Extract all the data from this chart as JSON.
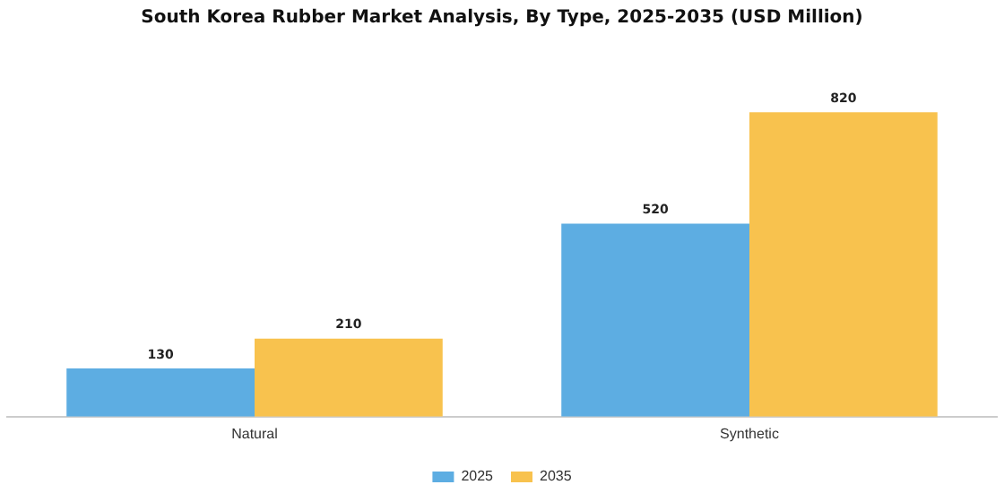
{
  "chart_data": {
    "type": "bar",
    "title": "South Korea Rubber Market Analysis, By Type, 2025-2035 (USD Million)",
    "categories": [
      "Natural",
      "Synthetic"
    ],
    "series": [
      {
        "name": "2025",
        "color": "#5dade2",
        "values": [
          130,
          520
        ]
      },
      {
        "name": "2035",
        "color": "#f8c24e",
        "values": [
          210,
          820
        ]
      }
    ],
    "data_labels": true,
    "legend": "bottom",
    "grid": false
  }
}
